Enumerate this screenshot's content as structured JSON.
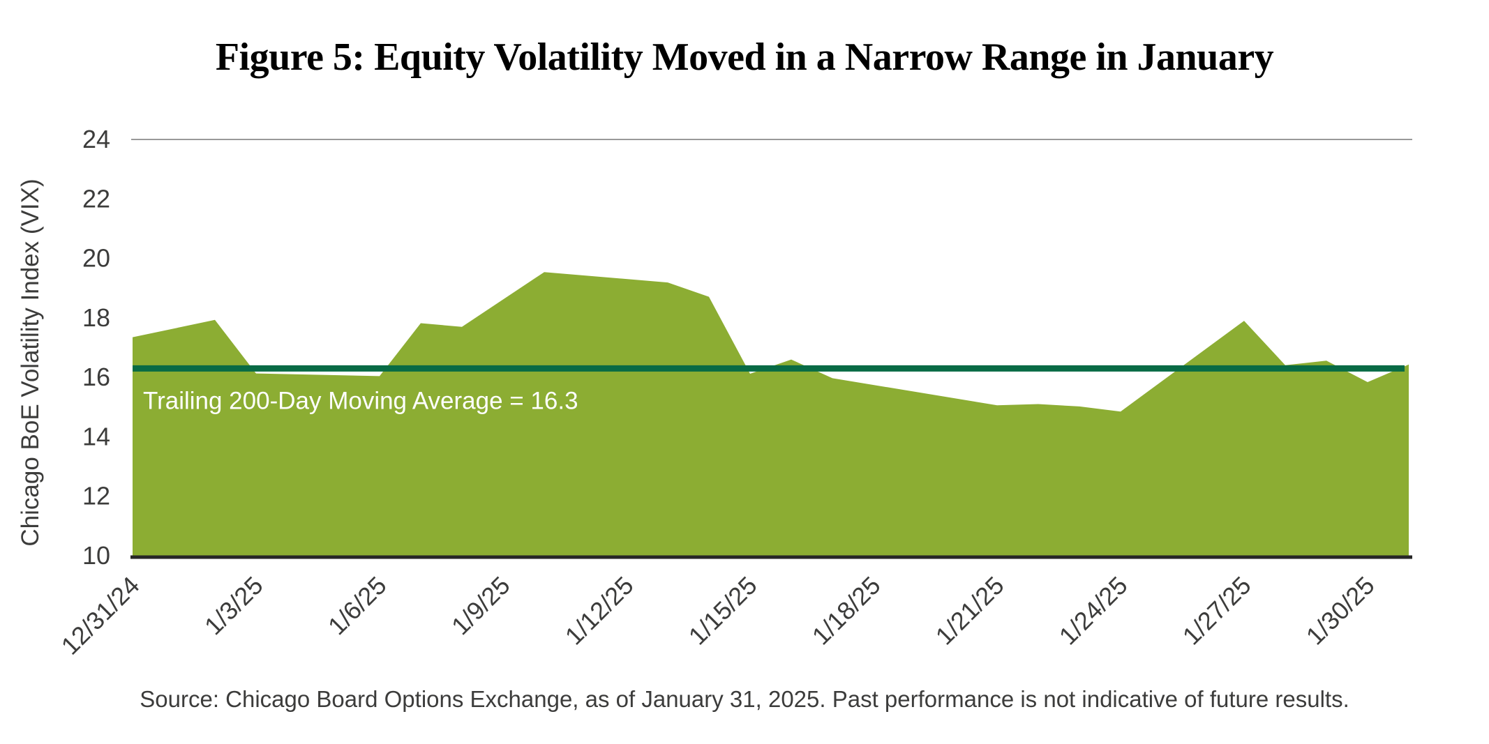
{
  "figure": {
    "title": "Figure 5: Equity Volatility Moved in a Narrow Range in January"
  },
  "chart_data": {
    "type": "area",
    "title": "Figure 5: Equity Volatility Moved in a Narrow Range in January",
    "series_name": "Chicago BoE Volatility Index (VIX)",
    "xlabel": "",
    "ylabel": "Chicago BoE Volatility Index (VIX)",
    "ylim": [
      10,
      24
    ],
    "yticks": [
      10,
      12,
      14,
      16,
      18,
      20,
      22,
      24
    ],
    "x": [
      "12/31/24",
      "1/2/25",
      "1/3/25",
      "1/6/25",
      "1/7/25",
      "1/8/25",
      "1/10/25",
      "1/13/25",
      "1/14/25",
      "1/15/25",
      "1/16/25",
      "1/17/25",
      "1/21/25",
      "1/22/25",
      "1/23/25",
      "1/24/25",
      "1/27/25",
      "1/28/25",
      "1/29/25",
      "1/30/25",
      "1/31/25"
    ],
    "day_offsets": [
      0,
      2,
      3,
      6,
      7,
      8,
      10,
      13,
      14,
      15,
      16,
      17,
      21,
      22,
      23,
      24,
      27,
      28,
      29,
      30,
      31
    ],
    "values": [
      17.35,
      17.93,
      16.13,
      16.04,
      17.82,
      17.7,
      19.54,
      19.19,
      18.71,
      16.12,
      16.6,
      15.97,
      15.06,
      15.1,
      15.02,
      14.85,
      17.9,
      16.41,
      16.56,
      15.84,
      16.43
    ],
    "x_span_days": 31,
    "xtick_labels": [
      "12/31/24",
      "1/3/25",
      "1/6/25",
      "1/9/25",
      "1/12/25",
      "1/15/25",
      "1/18/25",
      "1/21/25",
      "1/24/25",
      "1/27/25",
      "1/30/25"
    ],
    "xtick_day_offsets": [
      0,
      3,
      6,
      9,
      12,
      15,
      18,
      21,
      24,
      27,
      30
    ],
    "grid": "top-border-only",
    "legend": "none",
    "moving_average": {
      "label": "Trailing 200-Day Moving Average = 16.3",
      "value": 16.3
    },
    "colors": {
      "area": "#8cad33",
      "moving_average_line": "#086b45",
      "axis_line": "#262626",
      "top_border": "#999999",
      "tick_text": "#3c3c3b",
      "ma_label_text": "#ffffff"
    }
  },
  "source": {
    "text": "Source: Chicago Board Options Exchange, as of January 31, 2025. Past performance is not indicative of future results."
  }
}
